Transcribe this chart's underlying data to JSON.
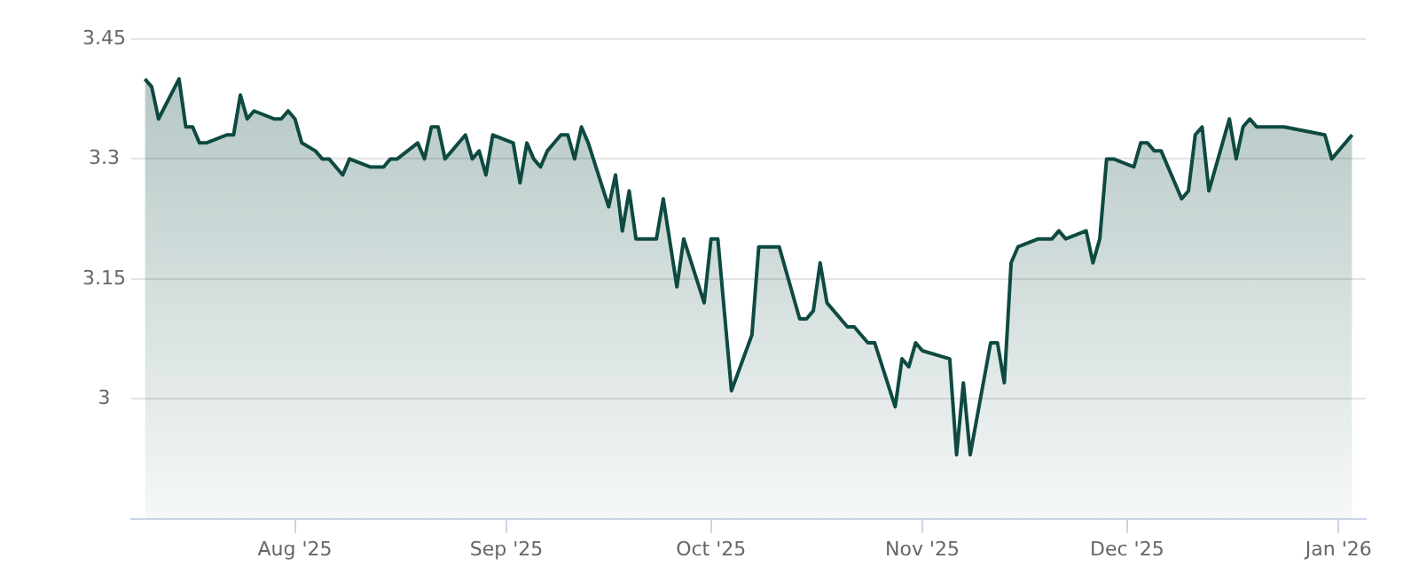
{
  "chart_data": {
    "type": "area",
    "x": [
      "2025-07-10",
      "2025-07-11",
      "2025-07-12",
      "2025-07-15",
      "2025-07-16",
      "2025-07-17",
      "2025-07-18",
      "2025-07-19",
      "2025-07-22",
      "2025-07-23",
      "2025-07-24",
      "2025-07-25",
      "2025-07-26",
      "2025-07-29",
      "2025-07-30",
      "2025-07-31",
      "2025-08-01",
      "2025-08-02",
      "2025-08-04",
      "2025-08-05",
      "2025-08-06",
      "2025-08-08",
      "2025-08-09",
      "2025-08-12",
      "2025-08-14",
      "2025-08-15",
      "2025-08-16",
      "2025-08-19",
      "2025-08-20",
      "2025-08-21",
      "2025-08-22",
      "2025-08-23",
      "2025-08-26",
      "2025-08-27",
      "2025-08-28",
      "2025-08-29",
      "2025-08-30",
      "2025-09-02",
      "2025-09-03",
      "2025-09-04",
      "2025-09-05",
      "2025-09-06",
      "2025-09-07",
      "2025-09-09",
      "2025-09-10",
      "2025-09-11",
      "2025-09-12",
      "2025-09-13",
      "2025-09-16",
      "2025-09-17",
      "2025-09-18",
      "2025-09-19",
      "2025-09-20",
      "2025-09-23",
      "2025-09-24",
      "2025-09-26",
      "2025-09-27",
      "2025-09-30",
      "2025-10-01",
      "2025-10-02",
      "2025-10-04",
      "2025-10-07",
      "2025-10-08",
      "2025-10-11",
      "2025-10-14",
      "2025-10-15",
      "2025-10-16",
      "2025-10-17",
      "2025-10-18",
      "2025-10-21",
      "2025-10-22",
      "2025-10-24",
      "2025-10-25",
      "2025-10-28",
      "2025-10-29",
      "2025-10-30",
      "2025-10-31",
      "2025-11-01",
      "2025-11-05",
      "2025-11-06",
      "2025-11-07",
      "2025-11-08",
      "2025-11-11",
      "2025-11-12",
      "2025-11-13",
      "2025-11-14",
      "2025-11-15",
      "2025-11-18",
      "2025-11-20",
      "2025-11-21",
      "2025-11-22",
      "2025-11-25",
      "2025-11-26",
      "2025-11-27",
      "2025-11-28",
      "2025-11-29",
      "2025-12-02",
      "2025-12-03",
      "2025-12-04",
      "2025-12-05",
      "2025-12-06",
      "2025-12-09",
      "2025-12-10",
      "2025-12-11",
      "2025-12-12",
      "2025-12-13",
      "2025-12-16",
      "2025-12-17",
      "2025-12-18",
      "2025-12-19",
      "2025-12-20",
      "2025-12-24",
      "2025-12-30",
      "2025-12-31",
      "2026-01-03"
    ],
    "series": [
      {
        "color": "#0e4a42",
        "values": [
          3.4,
          3.39,
          3.35,
          3.4,
          3.34,
          3.34,
          3.32,
          3.32,
          3.33,
          3.33,
          3.38,
          3.35,
          3.36,
          3.35,
          3.35,
          3.36,
          3.35,
          3.32,
          3.31,
          3.3,
          3.3,
          3.28,
          3.3,
          3.29,
          3.29,
          3.3,
          3.3,
          3.32,
          3.3,
          3.34,
          3.34,
          3.3,
          3.33,
          3.3,
          3.31,
          3.28,
          3.33,
          3.32,
          3.27,
          3.32,
          3.3,
          3.29,
          3.31,
          3.33,
          3.33,
          3.3,
          3.34,
          3.32,
          3.24,
          3.28,
          3.21,
          3.26,
          3.2,
          3.2,
          3.25,
          3.14,
          3.2,
          3.12,
          3.2,
          3.2,
          3.01,
          3.08,
          3.19,
          3.19,
          3.1,
          3.1,
          3.11,
          3.17,
          3.12,
          3.09,
          3.09,
          3.07,
          3.07,
          2.99,
          3.05,
          3.04,
          3.07,
          3.06,
          3.05,
          2.93,
          3.02,
          2.93,
          3.07,
          3.07,
          3.02,
          3.17,
          3.19,
          3.2,
          3.2,
          3.21,
          3.2,
          3.21,
          3.17,
          3.2,
          3.3,
          3.3,
          3.29,
          3.32,
          3.32,
          3.31,
          3.31,
          3.25,
          3.26,
          3.33,
          3.34,
          3.26,
          3.35,
          3.3,
          3.34,
          3.35,
          3.34,
          3.34,
          3.33,
          3.3,
          3.33
        ]
      }
    ],
    "xlim": [
      "2025-07-08",
      "2026-01-05"
    ],
    "xticks": [
      {
        "value": "2025-08-01",
        "label": "Aug '25"
      },
      {
        "value": "2025-09-01",
        "label": "Sep '25"
      },
      {
        "value": "2025-10-01",
        "label": "Oct '25"
      },
      {
        "value": "2025-11-01",
        "label": "Nov '25"
      },
      {
        "value": "2025-12-01",
        "label": "Dec '25"
      },
      {
        "value": "2026-01-01",
        "label": "Jan '26"
      }
    ],
    "ylim": [
      2.85,
      3.45
    ],
    "yticks": [
      {
        "value": 3,
        "label": "3"
      },
      {
        "value": 3.15,
        "label": "3.15"
      },
      {
        "value": 3.3,
        "label": "3.3"
      },
      {
        "value": 3.45,
        "label": "3.45"
      }
    ],
    "grid": "y",
    "legend": false,
    "marker": "none",
    "line_style": "solid"
  }
}
